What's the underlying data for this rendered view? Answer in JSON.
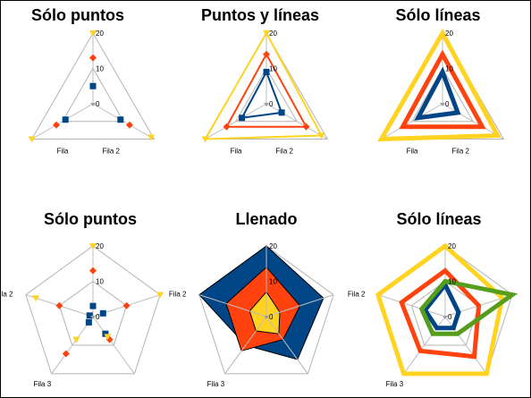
{
  "colors": {
    "grid": "#b4b4b4",
    "spoke": "#bebebe",
    "serie1": "#004586",
    "serie2": "#ff420e",
    "serie3": "#ffd320",
    "serie4": "#579d1c",
    "border": "#000000"
  },
  "chart_data": [
    {
      "type": "radar",
      "style": "points",
      "title": "Sólo puntos",
      "categories": [
        "",
        "Fila 2",
        "Fila"
      ],
      "rlim": [
        0,
        20
      ],
      "ticks": [
        "0",
        "10",
        "20"
      ],
      "series": [
        {
          "values": [
            5,
            9,
            9
          ]
        },
        {
          "values": [
            13,
            12,
            12
          ]
        },
        {
          "values": [
            20,
            19,
            20
          ]
        }
      ]
    },
    {
      "type": "radar",
      "style": "points-lines",
      "title": "Puntos y líneas",
      "categories": [
        "",
        "Fila 2",
        "Fila"
      ],
      "rlim": [
        0,
        20
      ],
      "ticks": [
        "0",
        "10",
        "20"
      ],
      "series": [
        {
          "values": [
            9,
            5,
            8
          ]
        },
        {
          "values": [
            14,
            13,
            13
          ]
        },
        {
          "values": [
            20,
            18,
            20
          ]
        }
      ]
    },
    {
      "type": "radar",
      "style": "lines",
      "title": "Sólo líneas",
      "categories": [
        "",
        "Fila 2",
        "Fila"
      ],
      "rlim": [
        0,
        20
      ],
      "ticks": [
        "0",
        "10",
        "20"
      ],
      "series": [
        {
          "values": [
            9,
            5,
            8
          ]
        },
        {
          "values": [
            14,
            13,
            13
          ]
        },
        {
          "values": [
            20,
            18,
            20
          ]
        }
      ]
    },
    {
      "type": "radar",
      "style": "points",
      "title": "Sólo puntos",
      "categories": [
        "",
        "",
        "",
        "Fila 3",
        "Fila 2"
      ],
      "rlim": [
        0,
        20
      ],
      "ticks": [
        "0",
        "10",
        "20"
      ],
      "series": [
        {
          "values": [
            3,
            3,
            6,
            2,
            1
          ]
        },
        {
          "values": [
            13,
            10,
            8,
            13,
            10
          ]
        },
        {
          "values": [
            20,
            20,
            7,
            8,
            17
          ]
        }
      ]
    },
    {
      "type": "radar",
      "style": "filled",
      "title": "Llenado",
      "categories": [
        "",
        "",
        "",
        "Fila 3",
        "Fila 2"
      ],
      "rlim": [
        0,
        20
      ],
      "ticks": [
        "0",
        "10",
        "20"
      ],
      "series": [
        {
          "values": [
            20,
            17,
            15,
            10,
            20
          ]
        },
        {
          "values": [
            14,
            10,
            8,
            12,
            12
          ]
        },
        {
          "values": [
            7,
            4,
            6,
            5,
            5
          ]
        }
      ]
    },
    {
      "type": "radar",
      "style": "lines",
      "title": "Sólo líneas",
      "categories": [
        "",
        "",
        "",
        "Fila 3",
        "Fila 2"
      ],
      "rlim": [
        0,
        20
      ],
      "ticks": [
        "0",
        "10",
        "20"
      ],
      "series": [
        {
          "values": [
            9,
            4,
            4,
            4,
            6
          ]
        },
        {
          "values": [
            13,
            10,
            14,
            12,
            13
          ]
        },
        {
          "values": [
            20,
            17,
            20,
            20,
            20
          ]
        },
        {
          "values": [
            10,
            20,
            6,
            6,
            7
          ]
        }
      ]
    }
  ]
}
